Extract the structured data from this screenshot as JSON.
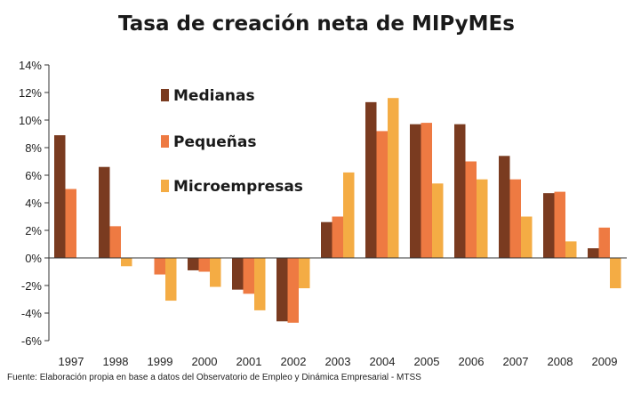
{
  "chart_data": {
    "type": "bar",
    "title": "Tasa de creación neta de MIPyMEs",
    "categories": [
      "1997",
      "1998",
      "1999",
      "2000",
      "2001",
      "2002",
      "2003",
      "2004",
      "2005",
      "2006",
      "2007",
      "2008",
      "2009"
    ],
    "series": [
      {
        "name": "Medianas",
        "color": "#7a3b20",
        "values": [
          8.9,
          6.6,
          0.0,
          -0.9,
          -2.3,
          -4.6,
          2.6,
          11.3,
          9.7,
          9.7,
          7.4,
          4.7,
          0.7
        ]
      },
      {
        "name": "Pequeñas",
        "color": "#ee7a42",
        "values": [
          5.0,
          2.3,
          -1.2,
          -1.0,
          -2.6,
          -4.7,
          3.0,
          9.2,
          9.8,
          7.0,
          5.7,
          4.8,
          2.2
        ]
      },
      {
        "name": "Microempresas",
        "color": "#f4ac44",
        "values": [
          0.0,
          -0.6,
          -3.1,
          -2.1,
          -3.8,
          -2.2,
          6.2,
          11.6,
          5.4,
          5.7,
          3.0,
          1.2,
          -2.2
        ]
      }
    ],
    "ylim": [
      -6,
      14
    ],
    "yticks": [
      "-6%",
      "-4%",
      "-2%",
      "0%",
      "2%",
      "4%",
      "6%",
      "8%",
      "10%",
      "12%",
      "14%"
    ],
    "xlabel": "",
    "ylabel": "",
    "legend_position": "top-left inside plot",
    "grid": false
  },
  "source_note": "Fuente: Elaboración propia en base a datos del Observatorio de Empleo y Dinámica Empresarial - MTSS"
}
